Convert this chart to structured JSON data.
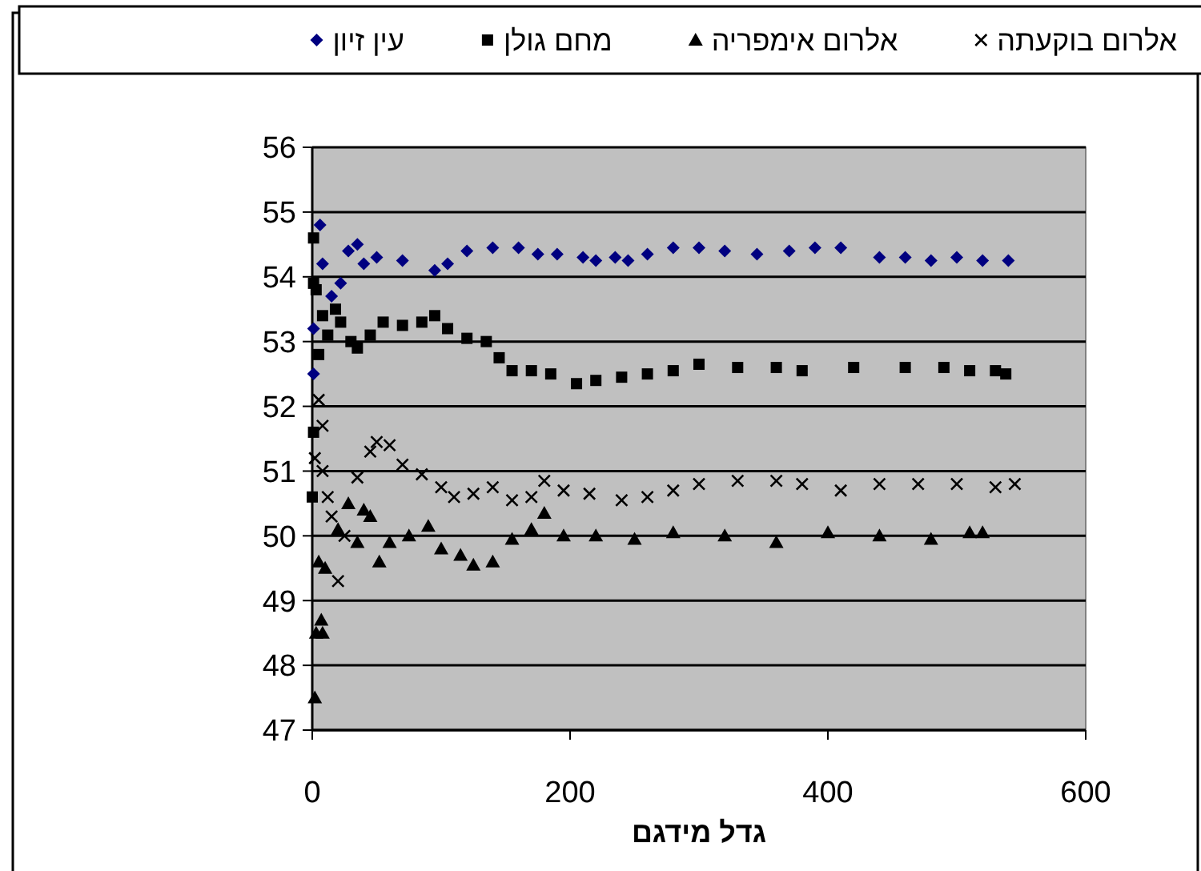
{
  "chart_data": {
    "type": "scatter",
    "xlabel": "גדל מידגם",
    "xlim": [
      0,
      600
    ],
    "xticks": [
      0,
      200,
      400,
      600
    ],
    "ylim": [
      47,
      56
    ],
    "yticks": [
      47,
      48,
      49,
      50,
      51,
      52,
      53,
      54,
      55,
      56
    ],
    "grid": "y",
    "legend": "top",
    "series": [
      {
        "name": "אלרום בוקעתה",
        "color": "#000000",
        "marker": "cross",
        "x": [
          2,
          5,
          8,
          8,
          12,
          15,
          20,
          25,
          35,
          45,
          50,
          60,
          70,
          85,
          100,
          110,
          125,
          140,
          155,
          170,
          180,
          195,
          215,
          240,
          260,
          280,
          300,
          330,
          360,
          380,
          410,
          440,
          470,
          500,
          530,
          545
        ],
        "values": [
          51.2,
          52.1,
          51.7,
          51,
          50.6,
          50.3,
          49.3,
          50,
          50.9,
          51.3,
          51.45,
          51.4,
          51.1,
          50.95,
          50.75,
          50.6,
          50.65,
          50.75,
          50.55,
          50.6,
          50.85,
          50.7,
          50.65,
          50.55,
          50.6,
          50.7,
          50.8,
          50.85,
          50.85,
          50.8,
          50.7,
          50.8,
          50.8,
          50.8,
          50.75,
          50.8
        ]
      },
      {
        "name": "אלרום אימפריה",
        "color": "#000000",
        "marker": "triangle",
        "x": [
          2,
          3,
          5,
          7,
          8,
          10,
          20,
          28,
          35,
          40,
          45,
          52,
          60,
          75,
          90,
          100,
          115,
          125,
          140,
          155,
          170,
          180,
          195,
          220,
          250,
          280,
          320,
          360,
          400,
          440,
          480,
          510,
          520
        ],
        "values": [
          47.5,
          48.5,
          49.6,
          48.7,
          48.5,
          49.5,
          50.1,
          50.5,
          49.9,
          50.4,
          50.3,
          49.6,
          49.9,
          50,
          50.15,
          49.8,
          49.7,
          49.55,
          49.6,
          49.95,
          50.1,
          50.35,
          50,
          50,
          49.95,
          50.05,
          50,
          49.9,
          50.05,
          50,
          49.95,
          50.05,
          50.05
        ]
      },
      {
        "name": "מחם גולן",
        "color": "#000000",
        "marker": "square",
        "x": [
          0,
          1,
          1,
          1,
          3,
          5,
          8,
          12,
          18,
          22,
          30,
          35,
          45,
          55,
          70,
          85,
          95,
          105,
          120,
          135,
          145,
          155,
          170,
          185,
          205,
          220,
          240,
          260,
          280,
          300,
          330,
          360,
          380,
          420,
          460,
          490,
          510,
          530,
          538
        ],
        "values": [
          50.6,
          54.6,
          53.9,
          51.6,
          53.8,
          52.8,
          53.4,
          53.1,
          53.5,
          53.3,
          53,
          52.9,
          53.1,
          53.3,
          53.25,
          53.3,
          53.4,
          53.2,
          53.05,
          53,
          52.75,
          52.55,
          52.55,
          52.5,
          52.35,
          52.4,
          52.45,
          52.5,
          52.55,
          52.65,
          52.6,
          52.6,
          52.55,
          52.6,
          52.6,
          52.6,
          52.55,
          52.55,
          52.5
        ]
      },
      {
        "name": "עין זיון",
        "color": "#000080",
        "marker": "diamond",
        "x": [
          1,
          1,
          6,
          8,
          15,
          22,
          28,
          35,
          40,
          50,
          70,
          95,
          105,
          120,
          140,
          160,
          175,
          190,
          210,
          220,
          235,
          245,
          260,
          280,
          300,
          320,
          345,
          370,
          390,
          410,
          440,
          460,
          480,
          500,
          520,
          540
        ],
        "values": [
          53.2,
          52.5,
          54.8,
          54.2,
          53.7,
          53.9,
          54.4,
          54.5,
          54.2,
          54.3,
          54.25,
          54.1,
          54.2,
          54.4,
          54.45,
          54.45,
          54.35,
          54.35,
          54.3,
          54.25,
          54.3,
          54.25,
          54.35,
          54.45,
          54.45,
          54.4,
          54.35,
          54.4,
          54.45,
          54.45,
          54.3,
          54.3,
          54.25,
          54.3,
          54.25,
          54.25
        ]
      }
    ]
  }
}
